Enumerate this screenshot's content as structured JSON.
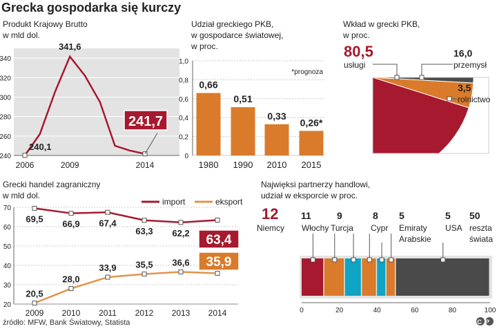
{
  "title": "Grecka gospodarka się kurczy",
  "source": "źródło: MFW, Bank Światowy, Statista",
  "credit": "CP",
  "colors": {
    "red": "#a6192e",
    "orange": "#d97b2b",
    "cyan": "#0fa3c4",
    "dark": "#4a4a4a",
    "panel": "#e3e3e3",
    "grid": "#ffffff",
    "text": "#222222",
    "line_red": "#a6192e",
    "line_orange": "#e0944a"
  },
  "chart_data": [
    {
      "id": "gdp",
      "type": "line",
      "title_lines": [
        "Produkt Krajowy Brutto",
        "w mld dol."
      ],
      "x": [
        2006,
        2007,
        2008,
        2009,
        2010,
        2011,
        2012,
        2013,
        2014
      ],
      "values": [
        240.1,
        262,
        305,
        341.6,
        322,
        295,
        250,
        245,
        241.7
      ],
      "labels": [
        {
          "idx": 0,
          "text": "240,1"
        },
        {
          "idx": 3,
          "text": "341,6"
        },
        {
          "idx": 8,
          "text": "241,7",
          "highlight": true
        }
      ],
      "x_ticks": [
        "2006",
        "2009",
        "2014"
      ],
      "x_tick_idx": [
        0,
        3,
        8
      ],
      "y_ticks": [
        "240",
        "260",
        "280",
        "300",
        "320",
        "340"
      ],
      "ylim": [
        240,
        350
      ]
    },
    {
      "id": "share",
      "type": "bar",
      "title_lines": [
        "Udział greckiego PKB,",
        "w gospodarce światowej,",
        "w proc."
      ],
      "note": "*prognoza",
      "categories": [
        "1980",
        "1990",
        "2010",
        "2015"
      ],
      "values": [
        0.66,
        0.51,
        0.33,
        0.26
      ],
      "value_labels": [
        "0,66",
        "0,51",
        "0,33",
        "0,26*"
      ],
      "y_ticks": [
        "0",
        "0,2",
        "0,4",
        "0,6",
        "0,8",
        "1,0"
      ],
      "ylim": [
        0,
        1.0
      ]
    },
    {
      "id": "structure",
      "type": "pie",
      "title_lines": [
        "Wkład w grecki PKB,",
        "w proc."
      ],
      "slices": [
        {
          "name": "usługi",
          "value": 80.5,
          "label": "80,5",
          "color": "red"
        },
        {
          "name": "przemysł",
          "value": 16.0,
          "label": "16,0",
          "color": "orange"
        },
        {
          "name": "rolnictwo",
          "value": 3.5,
          "label": "3,5",
          "color": "dark"
        }
      ]
    },
    {
      "id": "trade",
      "type": "line",
      "title_lines": [
        "Grecki handel zagraniczny",
        "w mld dol."
      ],
      "x": [
        "2009",
        "2010",
        "2011",
        "2012",
        "2013",
        "2014"
      ],
      "series": [
        {
          "name": "import",
          "values": [
            69.5,
            66.9,
            67.4,
            63.3,
            62.2,
            63.4
          ],
          "labels": [
            "69,5",
            "66,9",
            "67,4",
            "63,3",
            "62,2",
            "63,4"
          ],
          "color": "line_red"
        },
        {
          "name": "eksport",
          "values": [
            20.5,
            28.0,
            33.9,
            35.5,
            36.6,
            35.9
          ],
          "labels": [
            "20,5",
            "28,0",
            "33,9",
            "35,5",
            "36,6",
            "35,9"
          ],
          "color": "line_orange"
        }
      ],
      "y_ticks": [
        "20",
        "30",
        "40",
        "50",
        "60",
        "70"
      ],
      "ylim": [
        20,
        70
      ]
    },
    {
      "id": "partners",
      "type": "bar",
      "orientation": "stacked-horizontal",
      "title_lines": [
        "Najwięksi partnerzy handlowi,",
        "udział w eksporcie w proc."
      ],
      "segments": [
        {
          "name_lines": [
            "Niemcy"
          ],
          "value": 12,
          "label": "12",
          "color": "red"
        },
        {
          "name_lines": [
            "Włochy"
          ],
          "value": 11,
          "label": "11",
          "color": "orange"
        },
        {
          "name_lines": [
            "Turcja"
          ],
          "value": 9,
          "label": "9",
          "color": "cyan"
        },
        {
          "name_lines": [
            "Cypr"
          ],
          "value": 8,
          "label": "8",
          "color": "orange"
        },
        {
          "name_lines": [
            "Emiraty",
            "Arabskie"
          ],
          "value": 5,
          "label": "5",
          "color": "cyan"
        },
        {
          "name_lines": [
            "USA"
          ],
          "value": 5,
          "label": "5",
          "color": "orange"
        },
        {
          "name_lines": [
            "reszta",
            "świata"
          ],
          "value": 50,
          "label": "50",
          "color": "dark"
        }
      ],
      "x_ticks": [
        "0",
        "20",
        "40",
        "60",
        "80",
        "100"
      ],
      "xlim": [
        0,
        100
      ]
    }
  ]
}
